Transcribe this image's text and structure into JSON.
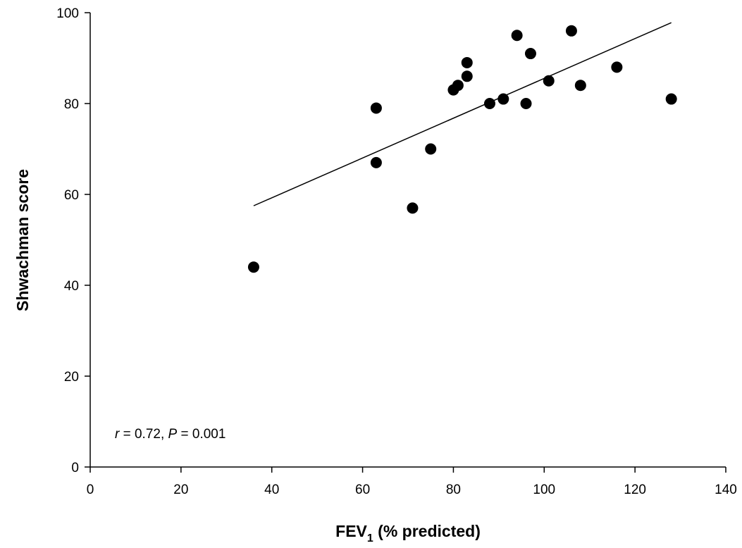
{
  "chart_data": {
    "type": "scatter",
    "title": "",
    "xlabel": "FEV",
    "xlabel_subscript": "1",
    "xlabel_suffix": " (% predicted)",
    "ylabel": "Shwachman score",
    "xlim": [
      0,
      140
    ],
    "ylim": [
      0,
      100
    ],
    "x_ticks": [
      0,
      20,
      40,
      60,
      80,
      100,
      120,
      140
    ],
    "y_ticks": [
      0,
      20,
      40,
      60,
      80,
      100
    ],
    "grid": false,
    "legend": "none",
    "points": [
      {
        "x": 36,
        "y": 44
      },
      {
        "x": 63,
        "y": 79
      },
      {
        "x": 63,
        "y": 67
      },
      {
        "x": 71,
        "y": 57
      },
      {
        "x": 75,
        "y": 70
      },
      {
        "x": 80,
        "y": 83
      },
      {
        "x": 81,
        "y": 84
      },
      {
        "x": 83,
        "y": 89
      },
      {
        "x": 83,
        "y": 86
      },
      {
        "x": 88,
        "y": 80
      },
      {
        "x": 91,
        "y": 81
      },
      {
        "x": 94,
        "y": 95
      },
      {
        "x": 96,
        "y": 80
      },
      {
        "x": 97,
        "y": 91
      },
      {
        "x": 101,
        "y": 85
      },
      {
        "x": 106,
        "y": 96
      },
      {
        "x": 108,
        "y": 84
      },
      {
        "x": 116,
        "y": 88
      },
      {
        "x": 128,
        "y": 81
      }
    ],
    "trendline": {
      "x": [
        36,
        128
      ],
      "y": [
        57.5,
        97.8
      ]
    },
    "annotation": {
      "r_label": "r",
      "r_value": " = 0.72, ",
      "p_label": "P",
      "p_value": " = 0.001"
    },
    "colors": {
      "marker": "#000000",
      "line": "#000000",
      "background": "#ffffff"
    }
  }
}
